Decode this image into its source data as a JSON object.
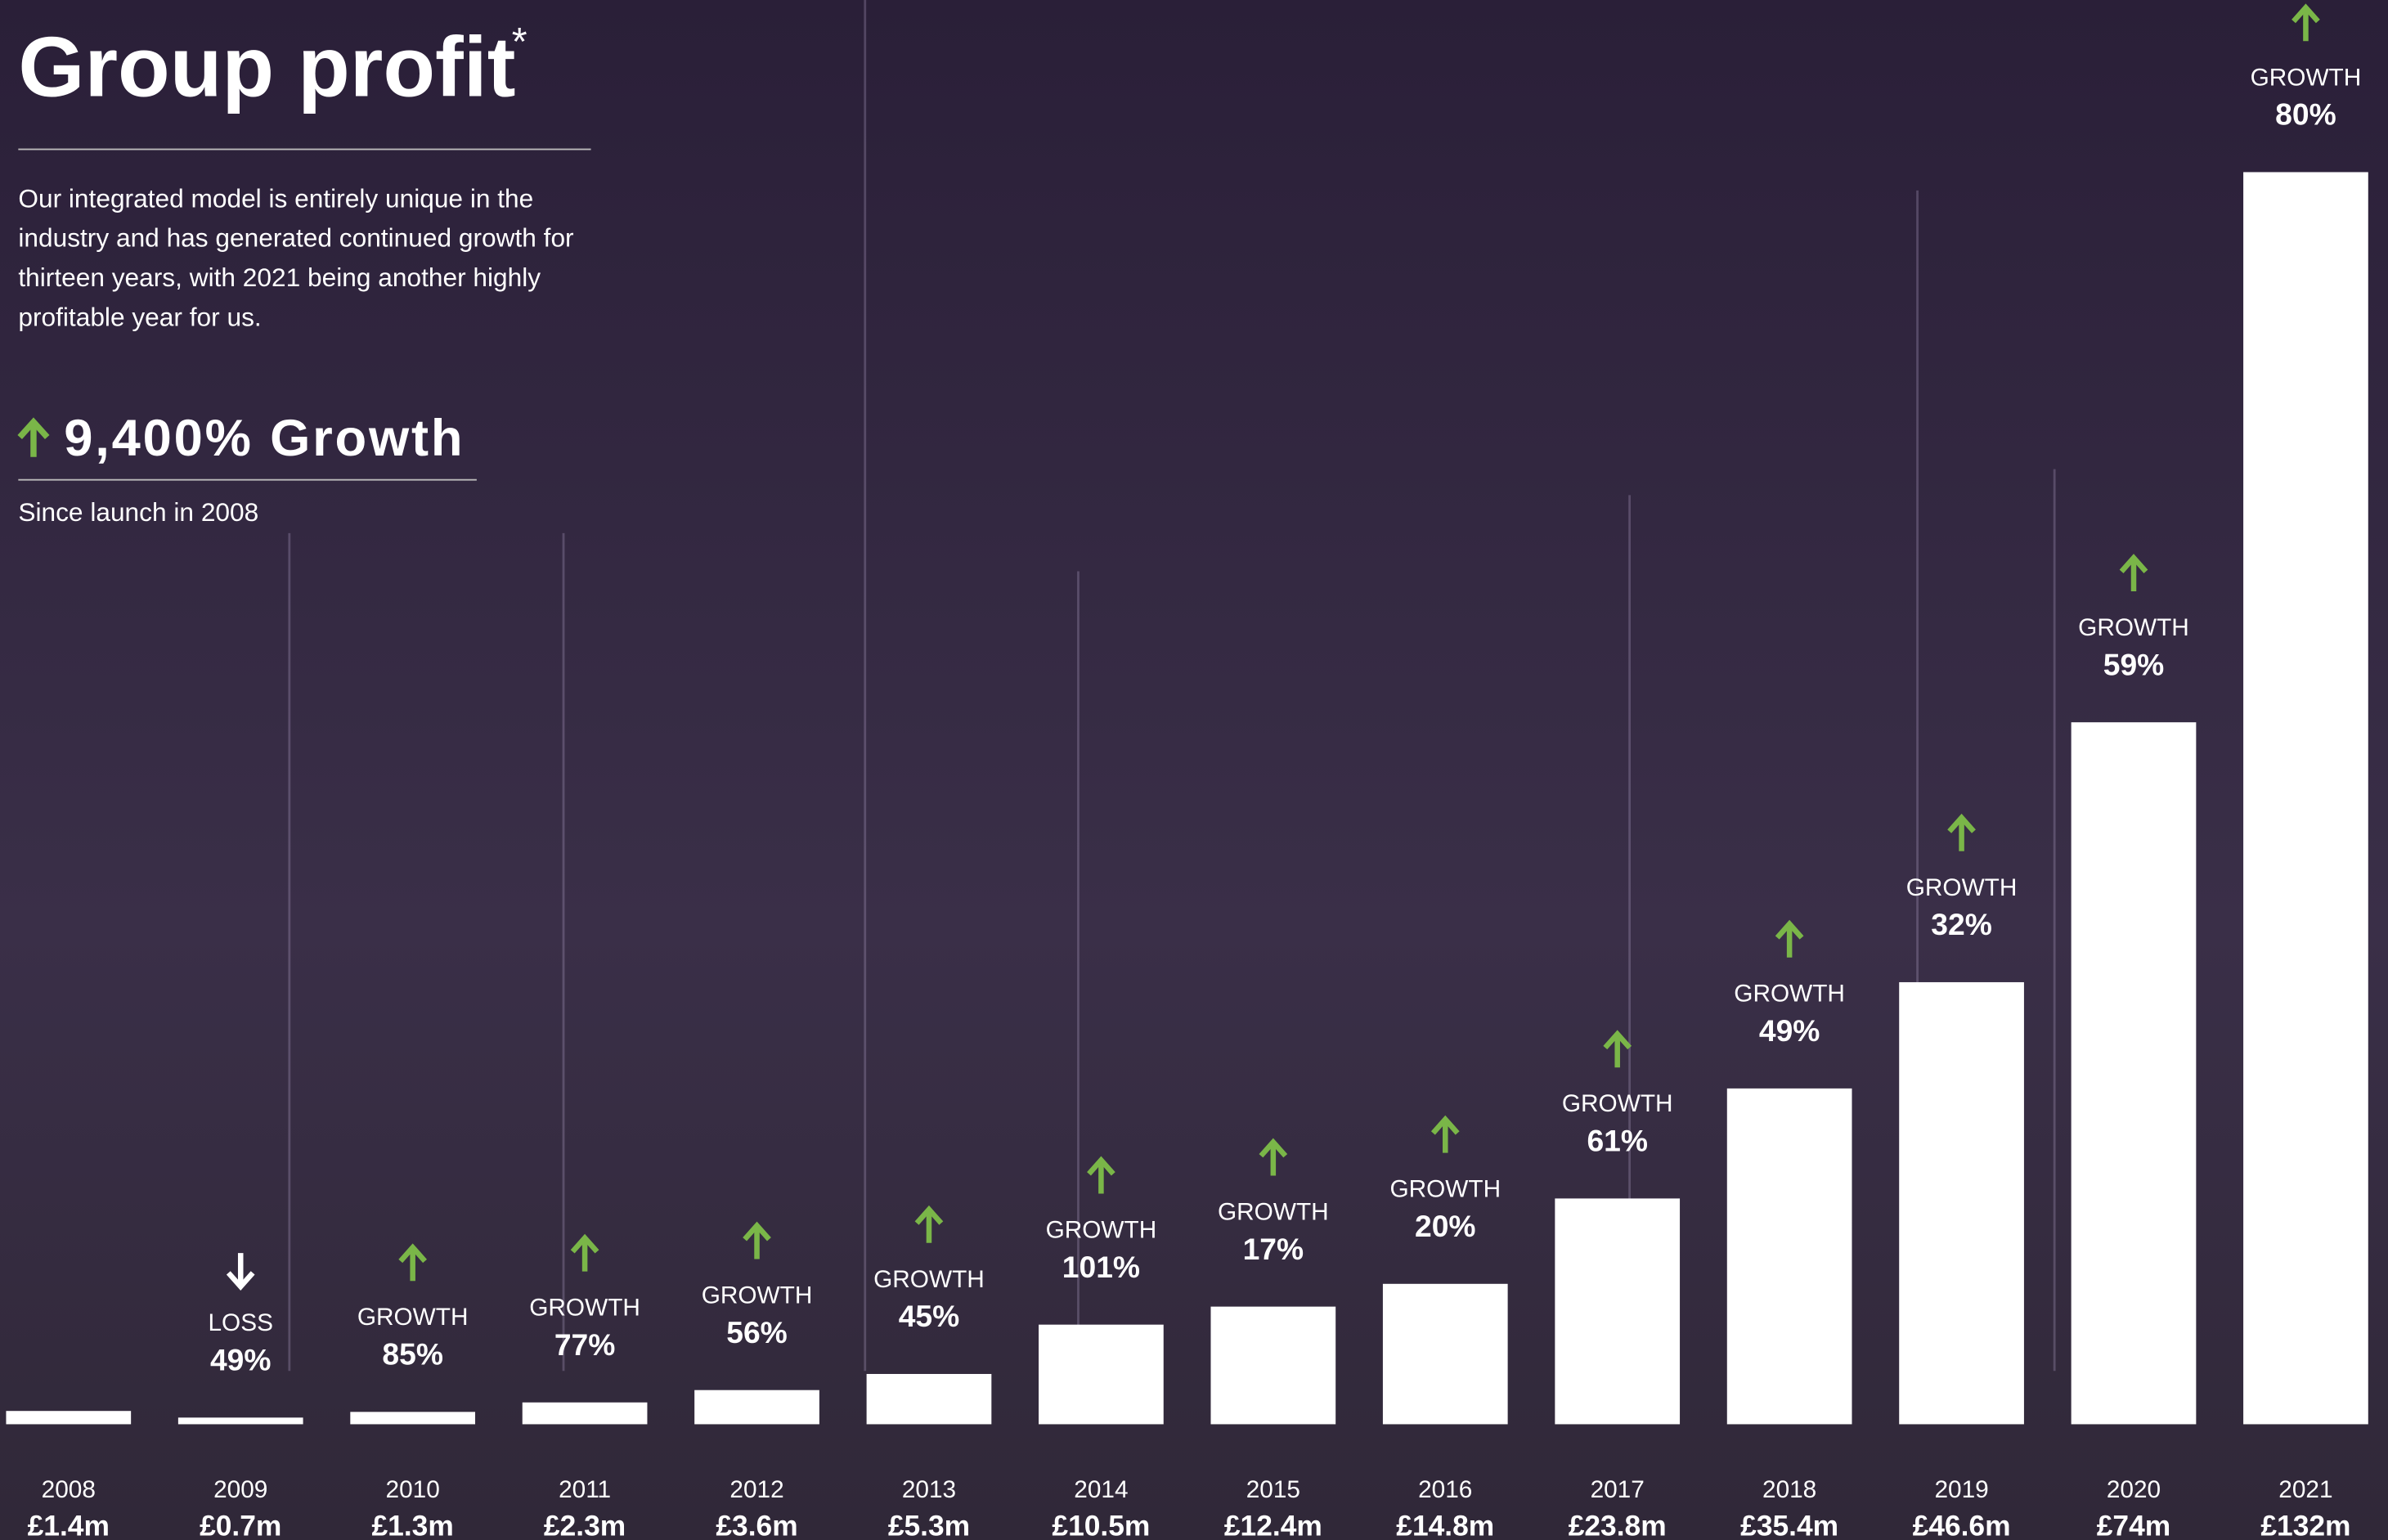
{
  "chart_data": {
    "type": "bar",
    "title": "Group profit",
    "title_mark": "*",
    "description": [
      "Our integrated model is entirely unique in the",
      "industry and has generated continued growth for",
      "thirteen years, with 2021 being another highly",
      "profitable year for us."
    ],
    "headline": "9,400% Growth",
    "headline_note": "Since launch in 2008",
    "categories": [
      "2008",
      "2009",
      "2010",
      "2011",
      "2012",
      "2013",
      "2014",
      "2015",
      "2016",
      "2017",
      "2018",
      "2019",
      "2020",
      "2021"
    ],
    "values": [
      1.4,
      0.7,
      1.3,
      2.3,
      3.6,
      5.3,
      10.5,
      12.4,
      14.8,
      23.8,
      35.4,
      46.6,
      74,
      132
    ],
    "value_labels": [
      "£1.4m",
      "£0.7m",
      "£1.3m",
      "£2.3m",
      "£3.6m",
      "£5.3m",
      "£10.5m",
      "£12.4m",
      "£14.8m",
      "£23.8m",
      "£35.4m",
      "£46.6m",
      "£74m",
      "£132m"
    ],
    "changes": [
      null,
      -49,
      85,
      77,
      56,
      45,
      101,
      17,
      20,
      61,
      49,
      32,
      59,
      80
    ],
    "change_labels": [
      null,
      "49%",
      "85%",
      "77%",
      "56%",
      "45%",
      "101%",
      "17%",
      "20%",
      "61%",
      "49%",
      "32%",
      "59%",
      "80%"
    ],
    "change_kinds": [
      null,
      "LOSS",
      "GROWTH",
      "GROWTH",
      "GROWTH",
      "GROWTH",
      "GROWTH",
      "GROWTH",
      "GROWTH",
      "GROWTH",
      "GROWTH",
      "GROWTH",
      "GROWTH",
      "GROWTH"
    ],
    "color": "#ffffff",
    "up_color": "#7ab648",
    "down_color": "#ffffff"
  }
}
